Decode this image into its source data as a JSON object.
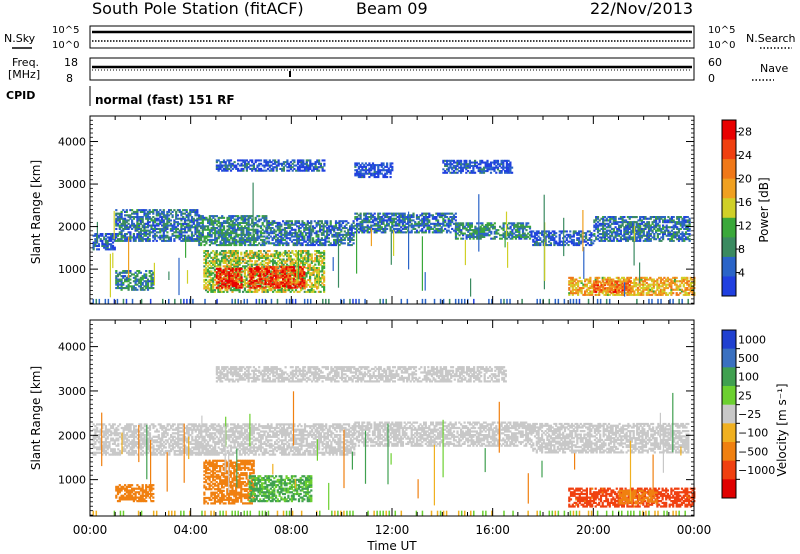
{
  "header": {
    "station": "South Pole Station (fitACF)",
    "beam": "Beam 09",
    "date": "22/Nov/2013"
  },
  "summary_panels": {
    "nsky": {
      "left_label": "N.Sky",
      "left_ticks": [
        "10^5",
        "10^0"
      ],
      "right_label": "N.Search",
      "right_ticks": [
        "10^5",
        "10^0"
      ]
    },
    "freq": {
      "left_label_1": "Freq.",
      "left_label_2": "[MHz]",
      "left_ticks": [
        "18",
        "8"
      ],
      "right_label": "Nave",
      "right_ticks": [
        "60",
        "0"
      ]
    },
    "cpid": {
      "label": "CPID",
      "text": "normal (fast) 151 RF"
    }
  },
  "colors": {
    "power": [
      "#2040e0",
      "#2a64c8",
      "#3a8a60",
      "#3aa83a",
      "#d0d028",
      "#f0a020",
      "#f07818",
      "#f04010",
      "#e80000"
    ],
    "velocity": [
      "#2040d0",
      "#3a70c0",
      "#40a050",
      "#6cd030",
      "#c8c8c8",
      "#f0b020",
      "#f08010",
      "#f04010",
      "#e00000"
    ]
  },
  "chart_data": [
    {
      "type": "heatmap",
      "title": "Power",
      "ylabel": "Slant Range [km]",
      "xlabel": "",
      "ylim": [
        180,
        4600
      ],
      "xlim": [
        0,
        24
      ],
      "yticks": [
        1000,
        2000,
        3000,
        4000
      ],
      "x_tick_labels": [
        "00:00",
        "04:00",
        "08:00",
        "12:00",
        "16:00",
        "20:00",
        "00:00"
      ],
      "colorbar": {
        "label": "Power [dB]",
        "ticks": [
          "4",
          "8",
          "12",
          "16",
          "20",
          "24",
          "28"
        ],
        "range": [
          0,
          30
        ]
      },
      "bands": [
        {
          "t0": 0.1,
          "t1": 1.0,
          "r0": 1450,
          "r1": 1850,
          "level": 4
        },
        {
          "t0": 1.0,
          "t1": 4.3,
          "r0": 1650,
          "r1": 2400,
          "level": 6
        },
        {
          "t0": 4.3,
          "t1": 7.0,
          "r0": 1550,
          "r1": 2250,
          "level": 8
        },
        {
          "t0": 7.0,
          "t1": 10.5,
          "r0": 1550,
          "r1": 2150,
          "level": 6
        },
        {
          "t0": 10.5,
          "t1": 14.5,
          "r0": 1850,
          "r1": 2300,
          "level": 6
        },
        {
          "t0": 14.5,
          "t1": 17.5,
          "r0": 1700,
          "r1": 2100,
          "level": 8
        },
        {
          "t0": 17.5,
          "t1": 20.0,
          "r0": 1550,
          "r1": 1900,
          "level": 4
        },
        {
          "t0": 20.0,
          "t1": 23.8,
          "r0": 1650,
          "r1": 2250,
          "level": 6
        },
        {
          "t0": 5.0,
          "t1": 9.3,
          "r0": 3300,
          "r1": 3550,
          "level": 3
        },
        {
          "t0": 10.5,
          "t1": 12.0,
          "r0": 3150,
          "r1": 3500,
          "level": 2
        },
        {
          "t0": 14.0,
          "t1": 16.8,
          "r0": 3250,
          "r1": 3550,
          "level": 3
        },
        {
          "t0": 4.5,
          "t1": 9.3,
          "r0": 450,
          "r1": 1450,
          "level": 14
        },
        {
          "t0": 5.0,
          "t1": 6.0,
          "r0": 550,
          "r1": 1000,
          "level": 27
        },
        {
          "t0": 6.3,
          "t1": 8.5,
          "r0": 550,
          "r1": 1050,
          "level": 26
        },
        {
          "t0": 1.0,
          "t1": 2.5,
          "r0": 500,
          "r1": 950,
          "level": 8
        },
        {
          "t0": 19.0,
          "t1": 24.0,
          "r0": 380,
          "r1": 800,
          "level": 18
        },
        {
          "t0": 20.0,
          "t1": 21.5,
          "r0": 450,
          "r1": 700,
          "level": 22
        }
      ]
    },
    {
      "type": "heatmap",
      "title": "Velocity",
      "ylabel": "Slant Range [km]",
      "xlabel": "Time UT",
      "ylim": [
        180,
        4600
      ],
      "xlim": [
        0,
        24
      ],
      "yticks": [
        1000,
        2000,
        3000,
        4000
      ],
      "x_tick_labels": [
        "00:00",
        "04:00",
        "08:00",
        "12:00",
        "16:00",
        "20:00",
        "00:00"
      ],
      "colorbar": {
        "label": "Velocity [m s⁻¹]",
        "ticks": [
          "1000",
          "500",
          "100",
          "25",
          "−25",
          "−100",
          "−500",
          "−1000"
        ],
        "range": [
          -1200,
          1200
        ]
      },
      "bands": [
        {
          "t0": 0.1,
          "t1": 4.3,
          "r0": 1550,
          "r1": 2250,
          "level": 0
        },
        {
          "t0": 4.3,
          "t1": 10.5,
          "r0": 1550,
          "r1": 2250,
          "level": 0
        },
        {
          "t0": 10.5,
          "t1": 17.5,
          "r0": 1750,
          "r1": 2300,
          "level": 0
        },
        {
          "t0": 17.5,
          "t1": 23.8,
          "r0": 1600,
          "r1": 2250,
          "level": 0
        },
        {
          "t0": 5.0,
          "t1": 16.5,
          "r0": 3200,
          "r1": 3550,
          "level": 0
        },
        {
          "t0": 4.5,
          "t1": 6.5,
          "r0": 450,
          "r1": 1450,
          "level": -200
        },
        {
          "t0": 6.3,
          "t1": 8.8,
          "r0": 500,
          "r1": 1100,
          "level": 110
        },
        {
          "t0": 1.0,
          "t1": 2.5,
          "r0": 500,
          "r1": 900,
          "level": -200
        },
        {
          "t0": 19.0,
          "t1": 24.0,
          "r0": 380,
          "r1": 800,
          "level": -700
        },
        {
          "t0": 21.0,
          "t1": 22.5,
          "r0": 450,
          "r1": 750,
          "level": -300
        }
      ]
    }
  ]
}
